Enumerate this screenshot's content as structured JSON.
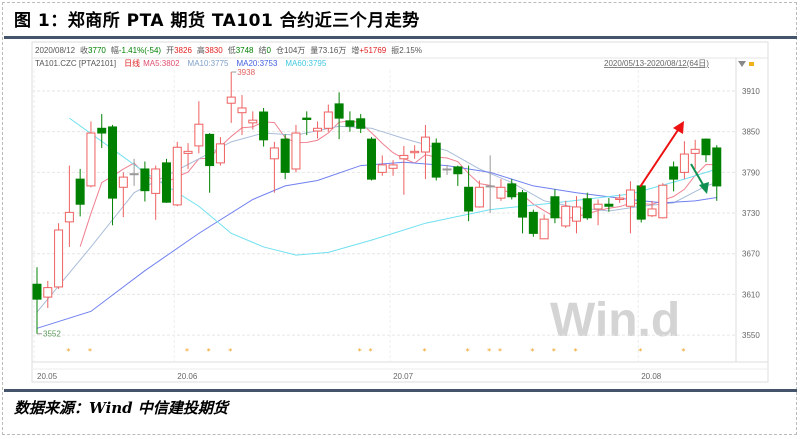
{
  "title": "图 1：郑商所 PTA 期货 TA101 合约近三个月走势",
  "footer": "数据来源：Wind  中信建投期货",
  "info_line": [
    {
      "label": "2020/08/12",
      "value": "",
      "color": "#555555"
    },
    {
      "label": "收",
      "value": "3770",
      "color": "#008000"
    },
    {
      "label": "幅",
      "value": "-1.41%(-54)",
      "color": "#008000"
    },
    {
      "label": "开",
      "value": "3826",
      "color": "#e02020"
    },
    {
      "label": "高",
      "value": "3830",
      "color": "#e02020"
    },
    {
      "label": "低",
      "value": "3748",
      "color": "#008000"
    },
    {
      "label": "结",
      "value": "0",
      "color": "#008000"
    },
    {
      "label": "仓",
      "value": "104万",
      "color": "#555555"
    },
    {
      "label": "量",
      "value": "73.16万",
      "color": "#555555"
    },
    {
      "label": "增",
      "value": "+51769",
      "color": "#e02020"
    },
    {
      "label": "振",
      "value": "2.15%",
      "color": "#555555"
    }
  ],
  "legend_line": [
    {
      "text": "TA101.CZC [PTA2101]",
      "color": "#555555"
    },
    {
      "text": "日线",
      "color": "#e02020"
    },
    {
      "text": "MA5:3802",
      "color": "#e05070"
    },
    {
      "text": "MA10:3775",
      "color": "#7fa0c8"
    },
    {
      "text": "MA20:3753",
      "color": "#4060e0"
    },
    {
      "text": "MA60:3795",
      "color": "#40c8e0"
    }
  ],
  "range_label": "2020/05/13-2020/08/12(64日)",
  "range_dropdown_icon": "triangle-down-icon",
  "lock_icon": "lock-icon",
  "watermark": "Win.d",
  "chart_data": {
    "type": "candlestick",
    "ylim": [
      3520,
      3940
    ],
    "yticks": [
      3550,
      3610,
      3670,
      3730,
      3790,
      3850,
      3910
    ],
    "grid": true,
    "colors": {
      "up": "#ee6060",
      "down": "#008000",
      "flat": "#999999"
    },
    "x_labels": [
      {
        "index": 0,
        "text": "20.05"
      },
      {
        "index": 13,
        "text": "20.06"
      },
      {
        "index": 33,
        "text": "20.07"
      },
      {
        "index": 56,
        "text": "20.08"
      }
    ],
    "annotations": [
      {
        "index": 0,
        "text": "3552",
        "value": 3552
      },
      {
        "index": 18,
        "text": "3938",
        "value": 3938
      }
    ],
    "event_markers": [
      3,
      5,
      14,
      16,
      18,
      30,
      31,
      36,
      40,
      42,
      43,
      46,
      48,
      50,
      56,
      60
    ],
    "candles": [
      [
        3625,
        3650,
        3552,
        3603
      ],
      [
        3606,
        3630,
        3590,
        3620
      ],
      [
        3621,
        3715,
        3618,
        3705
      ],
      [
        3717,
        3800,
        3680,
        3731
      ],
      [
        3780,
        3795,
        3725,
        3743
      ],
      [
        3770,
        3865,
        3768,
        3848
      ],
      [
        3855,
        3876,
        3826,
        3848
      ],
      [
        3857,
        3860,
        3712,
        3752
      ],
      [
        3768,
        3790,
        3724,
        3783
      ],
      [
        3788,
        3810,
        3770,
        3788
      ],
      [
        3795,
        3806,
        3747,
        3763
      ],
      [
        3759,
        3800,
        3720,
        3795
      ],
      [
        3804,
        3810,
        3745,
        3746
      ],
      [
        3742,
        3835,
        3740,
        3827
      ],
      [
        3818,
        3833,
        3795,
        3821
      ],
      [
        3829,
        3895,
        3818,
        3861
      ],
      [
        3846,
        3848,
        3760,
        3800
      ],
      [
        3804,
        3842,
        3800,
        3832
      ],
      [
        3892,
        3938,
        3863,
        3901
      ],
      [
        3878,
        3904,
        3845,
        3885
      ],
      [
        3863,
        3880,
        3853,
        3867
      ],
      [
        3879,
        3885,
        3828,
        3838
      ],
      [
        3810,
        3835,
        3760,
        3826
      ],
      [
        3839,
        3846,
        3780,
        3790
      ],
      [
        3795,
        3860,
        3790,
        3848
      ],
      [
        3870,
        3880,
        3845,
        3868
      ],
      [
        3851,
        3865,
        3840,
        3855
      ],
      [
        3855,
        3890,
        3850,
        3879
      ],
      [
        3891,
        3908,
        3839,
        3870
      ],
      [
        3866,
        3880,
        3850,
        3858
      ],
      [
        3869,
        3876,
        3848,
        3855
      ],
      [
        3839,
        3842,
        3778,
        3780
      ],
      [
        3790,
        3815,
        3785,
        3801
      ],
      [
        3796,
        3808,
        3785,
        3801
      ],
      [
        3810,
        3829,
        3757,
        3815
      ],
      [
        3819,
        3830,
        3810,
        3821
      ],
      [
        3820,
        3860,
        3780,
        3842
      ],
      [
        3833,
        3840,
        3778,
        3783
      ],
      [
        3795,
        3801,
        3786,
        3795
      ],
      [
        3798,
        3800,
        3770,
        3788
      ],
      [
        3768,
        3800,
        3718,
        3733
      ],
      [
        3739,
        3778,
        3738,
        3768
      ],
      [
        3770,
        3815,
        3730,
        3770
      ],
      [
        3752,
        3780,
        3748,
        3768
      ],
      [
        3773,
        3780,
        3750,
        3754
      ],
      [
        3760,
        3764,
        3700,
        3724
      ],
      [
        3731,
        3735,
        3695,
        3700
      ],
      [
        3692,
        3728,
        3692,
        3721
      ],
      [
        3754,
        3765,
        3715,
        3723
      ],
      [
        3711,
        3748,
        3708,
        3740
      ],
      [
        3718,
        3755,
        3700,
        3739
      ],
      [
        3751,
        3760,
        3720,
        3723
      ],
      [
        3736,
        3750,
        3712,
        3743
      ],
      [
        3743,
        3752,
        3732,
        3740
      ],
      [
        3750,
        3758,
        3745,
        3752
      ],
      [
        3740,
        3777,
        3700,
        3764
      ],
      [
        3770,
        3772,
        3716,
        3721
      ],
      [
        3726,
        3748,
        3724,
        3736
      ],
      [
        3723,
        3774,
        3722,
        3771
      ],
      [
        3798,
        3806,
        3762,
        3780
      ],
      [
        3790,
        3836,
        3780,
        3817
      ],
      [
        3818,
        3838,
        3795,
        3824
      ],
      [
        3839,
        3840,
        3805,
        3816
      ],
      [
        3826,
        3830,
        3748,
        3770
      ]
    ],
    "ma_series": [
      {
        "name": "MA5",
        "color": "#f08090",
        "computed_from_close": 5
      },
      {
        "name": "MA10",
        "color": "#a8bcd8",
        "points": [
          [
            0,
            3584
          ],
          [
            5,
            3680
          ],
          [
            9,
            3760
          ],
          [
            12,
            3785
          ],
          [
            15,
            3810
          ],
          [
            18,
            3835
          ],
          [
            21,
            3848
          ],
          [
            24,
            3845
          ],
          [
            28,
            3858
          ],
          [
            31,
            3855
          ],
          [
            34,
            3840
          ],
          [
            38,
            3822
          ],
          [
            41,
            3795
          ],
          [
            44,
            3775
          ],
          [
            47,
            3748
          ],
          [
            50,
            3738
          ],
          [
            53,
            3733
          ],
          [
            56,
            3740
          ],
          [
            59,
            3745
          ],
          [
            62,
            3770
          ],
          [
            63,
            3775
          ]
        ]
      },
      {
        "name": "MA20",
        "color": "#7080f0",
        "points": [
          [
            0,
            3560
          ],
          [
            5,
            3585
          ],
          [
            10,
            3645
          ],
          [
            15,
            3700
          ],
          [
            20,
            3750
          ],
          [
            23,
            3770
          ],
          [
            26,
            3778
          ],
          [
            30,
            3800
          ],
          [
            34,
            3805
          ],
          [
            38,
            3800
          ],
          [
            42,
            3790
          ],
          [
            46,
            3770
          ],
          [
            50,
            3760
          ],
          [
            55,
            3750
          ],
          [
            58,
            3745
          ],
          [
            61,
            3748
          ],
          [
            63,
            3753
          ]
        ]
      },
      {
        "name": "MA60",
        "color": "#70e0f0",
        "points": [
          [
            3,
            3870
          ],
          [
            10,
            3790
          ],
          [
            15,
            3740
          ],
          [
            18,
            3700
          ],
          [
            21,
            3680
          ],
          [
            24,
            3668
          ],
          [
            27,
            3672
          ],
          [
            31,
            3690
          ],
          [
            36,
            3715
          ],
          [
            42,
            3735
          ],
          [
            48,
            3745
          ],
          [
            55,
            3758
          ],
          [
            60,
            3780
          ],
          [
            63,
            3795
          ]
        ]
      }
    ]
  }
}
